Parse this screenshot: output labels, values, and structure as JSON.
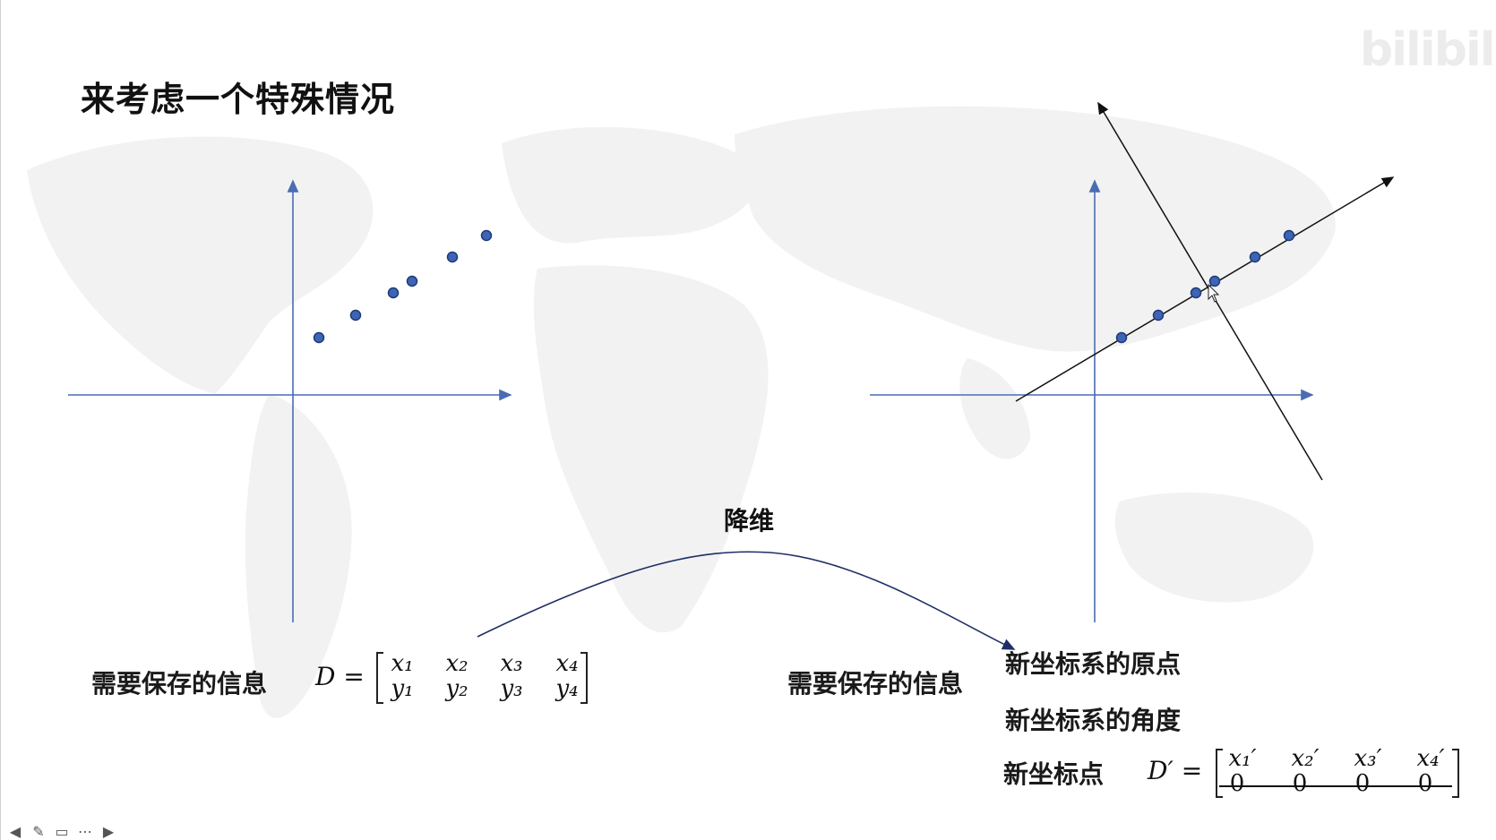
{
  "slide": {
    "title": "来考虑一个特殊情况",
    "watermark": "bilibili",
    "arc_label": "降维",
    "left_info_label": "需要保存的信息",
    "right_info_label": "需要保存的信息",
    "new_origin_label": "新坐标系的原点",
    "new_angle_label": "新坐标系的角度",
    "new_points_label": "新坐标点",
    "matrix_D": {
      "lhs": "D =",
      "row1": [
        "x₁",
        "x₂",
        "x₃",
        "x₄"
      ],
      "row2": [
        "y₁",
        "y₂",
        "y₃",
        "y₄"
      ]
    },
    "matrix_D_prime": {
      "lhs": "D′ =",
      "row1": [
        "x₁′",
        "x₂′",
        "x₃′",
        "x₄′"
      ],
      "row2": [
        "0",
        "0",
        "0",
        "0"
      ]
    }
  },
  "colors": {
    "axis": "#4a6cb3",
    "point_fill": "#3e64b5",
    "point_stroke": "#1e3a78",
    "line": "#222222",
    "map": "#f3f3f3"
  },
  "toolbar": {
    "icons": [
      "arrow-left-icon",
      "pen-icon",
      "screen-icon",
      "more-icon",
      "arrow-right-icon"
    ],
    "glyphs": [
      "◀",
      "✎",
      "▭",
      "⋯",
      "▶"
    ]
  }
}
